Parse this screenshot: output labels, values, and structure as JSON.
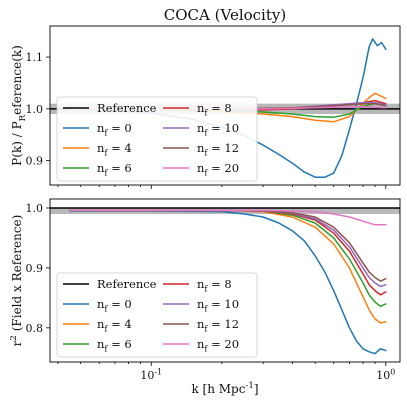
{
  "figure": {
    "title": "COCA (Velocity)",
    "xlabel": "k [h Mpc^{-1}]"
  },
  "colors": {
    "Reference": "#000000",
    "n0": "#1f77b4",
    "n4": "#ff7f0e",
    "n6": "#2ca02c",
    "n8": "#d62728",
    "n10": "#9467bd",
    "n12": "#8c564b",
    "n20": "#e377c2",
    "band": "#b8b8b8"
  },
  "chart_data": [
    {
      "type": "line",
      "title": "COCA (Velocity)",
      "xlabel": "",
      "ylabel": "P(k) / P_Reference(k)",
      "xscale": "log",
      "xlim": [
        0.037,
        1.15
      ],
      "ylim": [
        0.853,
        1.16
      ],
      "xticks": [
        {
          "value": 0.1,
          "label": "10^{-1}"
        },
        {
          "value": 1.0,
          "label": "10^{0}"
        }
      ],
      "yticks": [
        {
          "value": 0.9,
          "label": "0.9"
        },
        {
          "value": 1.0,
          "label": "1.0"
        },
        {
          "value": 1.1,
          "label": "1.1"
        }
      ],
      "xticks_labeled": false,
      "band": [
        0.99,
        1.01
      ],
      "grid": false,
      "legend": {
        "placement": "center-left",
        "columns": 2
      },
      "series": [
        {
          "key": "ref",
          "name": "Reference",
          "color_key": "Reference",
          "x": [
            0.035,
            1.2
          ],
          "y": [
            1.0,
            1.0
          ]
        },
        {
          "key": "n0",
          "name": "n_f = 0",
          "color_key": "n0",
          "x": [
            0.045,
            0.07,
            0.1,
            0.15,
            0.2,
            0.25,
            0.3,
            0.35,
            0.4,
            0.45,
            0.5,
            0.55,
            0.6,
            0.65,
            0.7,
            0.75,
            0.8,
            0.85,
            0.88,
            0.92,
            0.96,
            1.0
          ],
          "y": [
            0.999,
            0.997,
            0.992,
            0.98,
            0.965,
            0.948,
            0.93,
            0.912,
            0.895,
            0.878,
            0.868,
            0.868,
            0.876,
            0.91,
            0.96,
            1.01,
            1.06,
            1.12,
            1.135,
            1.122,
            1.128,
            1.115
          ]
        },
        {
          "key": "n4",
          "name": "n_f = 4",
          "color_key": "n4",
          "x": [
            0.045,
            0.1,
            0.2,
            0.3,
            0.4,
            0.5,
            0.6,
            0.7,
            0.8,
            0.85,
            0.9,
            0.95,
            1.0
          ],
          "y": [
            1.0,
            0.998,
            0.995,
            0.99,
            0.985,
            0.978,
            0.975,
            0.985,
            1.01,
            1.022,
            1.03,
            1.025,
            1.02
          ]
        },
        {
          "key": "n6",
          "name": "n_f = 6",
          "color_key": "n6",
          "x": [
            0.045,
            0.1,
            0.2,
            0.3,
            0.4,
            0.5,
            0.6,
            0.7,
            0.8,
            0.9,
            1.0
          ],
          "y": [
            1.0,
            0.999,
            0.997,
            0.994,
            0.99,
            0.985,
            0.984,
            0.99,
            1.005,
            1.01,
            1.008
          ]
        },
        {
          "key": "n8",
          "name": "n_f = 8",
          "color_key": "n8",
          "x": [
            0.045,
            0.1,
            0.2,
            0.3,
            0.4,
            0.5,
            0.6,
            0.7,
            0.8,
            0.9,
            1.0
          ],
          "y": [
            1.0,
            1.0,
            0.999,
            0.998,
            1.0,
            1.003,
            1.006,
            1.01,
            1.012,
            1.016,
            1.01
          ]
        },
        {
          "key": "n10",
          "name": "n_f = 10",
          "color_key": "n10",
          "x": [
            0.045,
            0.1,
            0.2,
            0.3,
            0.4,
            0.5,
            0.6,
            0.7,
            0.8,
            0.9,
            1.0
          ],
          "y": [
            1.0,
            1.0,
            1.0,
            1.0,
            1.002,
            1.005,
            1.008,
            1.01,
            1.012,
            1.012,
            1.008
          ]
        },
        {
          "key": "n12",
          "name": "n_f = 12",
          "color_key": "n12",
          "x": [
            0.045,
            0.1,
            0.2,
            0.3,
            0.4,
            0.5,
            0.6,
            0.7,
            0.8,
            0.9,
            1.0
          ],
          "y": [
            1.0,
            1.0,
            1.0,
            1.001,
            1.002,
            1.004,
            1.006,
            1.008,
            1.01,
            1.01,
            1.006
          ]
        },
        {
          "key": "n20",
          "name": "n_f = 20",
          "color_key": "n20",
          "x": [
            0.045,
            0.1,
            0.2,
            0.3,
            0.4,
            0.5,
            0.6,
            0.7,
            0.8,
            0.9,
            1.0
          ],
          "y": [
            1.0,
            1.0,
            1.0,
            1.0,
            1.001,
            1.002,
            1.003,
            1.004,
            1.004,
            1.003,
            1.002
          ]
        }
      ]
    },
    {
      "type": "line",
      "title": "",
      "xlabel": "k [h Mpc^{-1}]",
      "ylabel": "r^2 (Field x Reference)",
      "xscale": "log",
      "xlim": [
        0.037,
        1.15
      ],
      "ylim": [
        0.743,
        1.015
      ],
      "xticks": [
        {
          "value": 0.1,
          "label": "10^{-1}"
        },
        {
          "value": 1.0,
          "label": "10^{0}"
        }
      ],
      "yticks": [
        {
          "value": 0.8,
          "label": "0.8"
        },
        {
          "value": 0.9,
          "label": "0.9"
        },
        {
          "value": 1.0,
          "label": "1.0"
        }
      ],
      "xticks_labeled": true,
      "band": [
        0.99,
        1.0
      ],
      "grid": false,
      "legend": {
        "placement": "lower-left",
        "columns": 2
      },
      "series": [
        {
          "key": "ref",
          "name": "Reference",
          "color_key": "Reference",
          "x": [
            0.035,
            1.2
          ],
          "y": [
            1.0,
            1.0
          ]
        },
        {
          "key": "n0",
          "name": "n_f = 0",
          "color_key": "n0",
          "x": [
            0.045,
            0.1,
            0.2,
            0.25,
            0.3,
            0.35,
            0.4,
            0.45,
            0.5,
            0.55,
            0.6,
            0.65,
            0.7,
            0.75,
            0.8,
            0.85,
            0.9,
            0.95,
            1.0
          ],
          "y": [
            0.995,
            0.995,
            0.994,
            0.99,
            0.985,
            0.975,
            0.962,
            0.945,
            0.92,
            0.893,
            0.862,
            0.83,
            0.8,
            0.778,
            0.765,
            0.76,
            0.757,
            0.765,
            0.762
          ]
        },
        {
          "key": "n4",
          "name": "n_f = 4",
          "color_key": "n4",
          "x": [
            0.045,
            0.2,
            0.3,
            0.4,
            0.5,
            0.6,
            0.7,
            0.8,
            0.85,
            0.9,
            0.95,
            1.0
          ],
          "y": [
            0.996,
            0.996,
            0.994,
            0.985,
            0.968,
            0.94,
            0.9,
            0.852,
            0.83,
            0.815,
            0.808,
            0.81
          ]
        },
        {
          "key": "n6",
          "name": "n_f = 6",
          "color_key": "n6",
          "x": [
            0.045,
            0.2,
            0.3,
            0.4,
            0.5,
            0.6,
            0.7,
            0.8,
            0.85,
            0.9,
            0.95,
            1.0
          ],
          "y": [
            0.996,
            0.996,
            0.995,
            0.988,
            0.975,
            0.95,
            0.915,
            0.875,
            0.855,
            0.843,
            0.836,
            0.84
          ]
        },
        {
          "key": "n8",
          "name": "n_f = 8",
          "color_key": "n8",
          "x": [
            0.045,
            0.2,
            0.3,
            0.4,
            0.5,
            0.6,
            0.7,
            0.8,
            0.85,
            0.9,
            0.95,
            1.0
          ],
          "y": [
            0.996,
            0.996,
            0.995,
            0.99,
            0.98,
            0.958,
            0.928,
            0.89,
            0.872,
            0.862,
            0.855,
            0.86
          ]
        },
        {
          "key": "n10",
          "name": "n_f = 10",
          "color_key": "n10",
          "x": [
            0.045,
            0.2,
            0.3,
            0.4,
            0.5,
            0.6,
            0.7,
            0.8,
            0.85,
            0.9,
            0.95,
            1.0
          ],
          "y": [
            0.996,
            0.996,
            0.995,
            0.991,
            0.982,
            0.963,
            0.935,
            0.9,
            0.884,
            0.875,
            0.869,
            0.872
          ]
        },
        {
          "key": "n12",
          "name": "n_f = 12",
          "color_key": "n12",
          "x": [
            0.045,
            0.2,
            0.3,
            0.4,
            0.5,
            0.6,
            0.7,
            0.8,
            0.85,
            0.9,
            0.95,
            1.0
          ],
          "y": [
            0.996,
            0.996,
            0.995,
            0.992,
            0.985,
            0.968,
            0.942,
            0.908,
            0.893,
            0.884,
            0.878,
            0.882
          ]
        },
        {
          "key": "n20",
          "name": "n_f = 20",
          "color_key": "n20",
          "x": [
            0.045,
            0.2,
            0.3,
            0.4,
            0.5,
            0.6,
            0.7,
            0.8,
            0.9,
            1.0
          ],
          "y": [
            0.996,
            0.996,
            0.996,
            0.995,
            0.994,
            0.99,
            0.985,
            0.978,
            0.972,
            0.972
          ]
        }
      ]
    }
  ]
}
